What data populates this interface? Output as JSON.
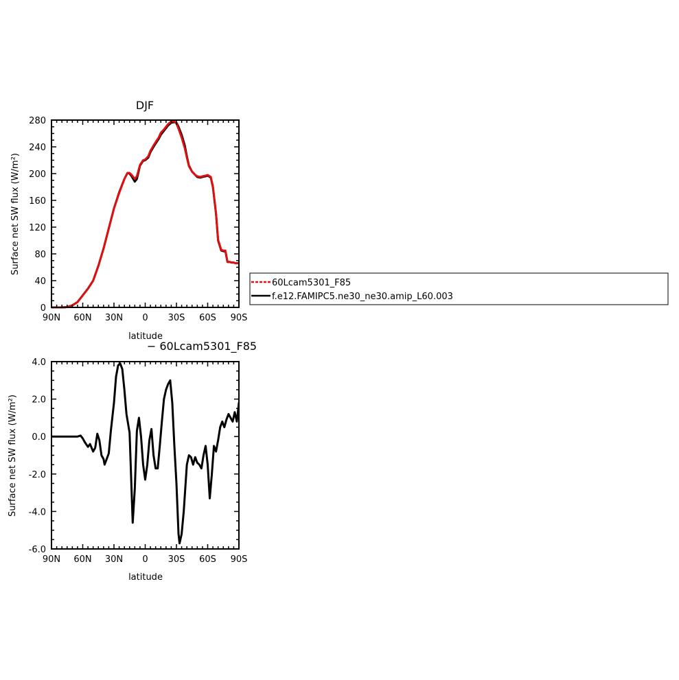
{
  "chart_data": [
    {
      "type": "line",
      "title": "DJF",
      "xlabel": "latitude",
      "ylabel": "Surface net SW flux (W/m²)",
      "xlim": [
        90,
        -90
      ],
      "ylim": [
        0,
        280
      ],
      "xticks": [
        90,
        60,
        30,
        0,
        -30,
        -60,
        -90
      ],
      "xtick_labels": [
        "90N",
        "60N",
        "30N",
        "0",
        "30S",
        "60S",
        "90S"
      ],
      "yticks": [
        0,
        40,
        80,
        120,
        160,
        200,
        240,
        280
      ],
      "ytick_labels": [
        "0",
        "40",
        "80",
        "120",
        "160",
        "200",
        "240",
        "280"
      ],
      "series": [
        {
          "name": "f.e12.FAMIPC5.ne30_ne30.amip_L60.003",
          "color": "#000000",
          "dash": "solid",
          "x": [
            90,
            85,
            80,
            75,
            70,
            65,
            60,
            55,
            50,
            45,
            40,
            35,
            30,
            25,
            20,
            17,
            15,
            13,
            10,
            8,
            5,
            2,
            0,
            -3,
            -5,
            -8,
            -10,
            -13,
            -15,
            -18,
            -20,
            -22,
            -25,
            -28,
            -30,
            -32,
            -35,
            -38,
            -40,
            -42,
            -45,
            -48,
            -50,
            -53,
            -55,
            -58,
            -60,
            -63,
            -65,
            -68,
            -70,
            -73,
            -75,
            -77,
            -79,
            -81,
            -83,
            -85,
            -87,
            -90
          ],
          "values": [
            0,
            0,
            0,
            0.5,
            3,
            8,
            18,
            28,
            40,
            62,
            88,
            118,
            148,
            172,
            192,
            201,
            200,
            196,
            188,
            192,
            212,
            219,
            220,
            224,
            232,
            240,
            245,
            252,
            258,
            264,
            268,
            272,
            276,
            277,
            276,
            270,
            258,
            242,
            226,
            212,
            203,
            198,
            195,
            194,
            195,
            196,
            197,
            194,
            180,
            140,
            100,
            85,
            84,
            84,
            68,
            68,
            67,
            67,
            66,
            66
          ]
        },
        {
          "name": "60Lcam5301_F85",
          "color": "#e01010",
          "dash": "dashed",
          "x": [
            90,
            85,
            80,
            75,
            70,
            65,
            60,
            55,
            50,
            45,
            40,
            35,
            30,
            25,
            20,
            17,
            15,
            13,
            10,
            8,
            5,
            2,
            0,
            -3,
            -5,
            -8,
            -10,
            -13,
            -15,
            -18,
            -20,
            -22,
            -25,
            -28,
            -30,
            -32,
            -35,
            -38,
            -40,
            -42,
            -45,
            -48,
            -50,
            -53,
            -55,
            -58,
            -60,
            -63,
            -65,
            -68,
            -70,
            -73,
            -75,
            -77,
            -79,
            -81,
            -83,
            -85,
            -87,
            -90
          ],
          "values": [
            0,
            0,
            0,
            0.5,
            3,
            8,
            18,
            28,
            40,
            62,
            88,
            118,
            148,
            171,
            192,
            201,
            201,
            198,
            192,
            196,
            213,
            220,
            221,
            226,
            234,
            242,
            247,
            254,
            261,
            266,
            270,
            274,
            278,
            278,
            275,
            267,
            254,
            238,
            224,
            211,
            203,
            198,
            196,
            195,
            196,
            197,
            198,
            195,
            181,
            141,
            101,
            86,
            85,
            85,
            68,
            68,
            67,
            67,
            66,
            66
          ]
        }
      ]
    },
    {
      "type": "line",
      "title": "− 60Lcam5301_F85",
      "xlabel": "latitude",
      "ylabel": "Surface net SW flux (W/m²)",
      "xlim": [
        90,
        -90
      ],
      "ylim": [
        -6,
        4
      ],
      "xticks": [
        90,
        60,
        30,
        0,
        -30,
        -60,
        -90
      ],
      "xtick_labels": [
        "90N",
        "60N",
        "30N",
        "0",
        "30S",
        "60S",
        "90S"
      ],
      "yticks": [
        -6,
        -4,
        -2,
        0,
        2,
        4
      ],
      "ytick_labels": [
        "-6.0",
        "-4.0",
        "-2.0",
        "0.0",
        "2.0",
        "4.0"
      ],
      "series": [
        {
          "color": "#000000",
          "dash": "solid",
          "x": [
            90,
            80,
            70,
            65,
            62,
            60,
            58,
            55,
            53,
            50,
            48,
            46,
            44,
            42,
            40,
            39,
            37,
            35,
            33,
            30,
            28,
            26,
            24,
            22,
            20,
            18,
            15,
            12,
            10,
            8,
            6,
            4,
            2,
            0,
            -2,
            -4,
            -6,
            -8,
            -10,
            -12,
            -14,
            -16,
            -18,
            -20,
            -22,
            -24,
            -26,
            -28,
            -30,
            -32,
            -33,
            -35,
            -37,
            -40,
            -42,
            -44,
            -46,
            -48,
            -50,
            -52,
            -54,
            -56,
            -58,
            -60,
            -62,
            -64,
            -66,
            -68,
            -70,
            -72,
            -74,
            -76,
            -78,
            -80,
            -82,
            -84,
            -86,
            -88,
            -90
          ],
          "values": [
            0,
            0,
            0,
            0,
            0.05,
            -0.1,
            -0.3,
            -0.55,
            -0.4,
            -0.8,
            -0.6,
            0.15,
            -0.2,
            -1.0,
            -1.2,
            -1.5,
            -1.2,
            -0.9,
            0.3,
            1.8,
            3.2,
            3.8,
            3.9,
            3.6,
            2.5,
            1.2,
            0.2,
            -4.6,
            -2.8,
            0.3,
            1.0,
            0.0,
            -1.5,
            -2.3,
            -1.5,
            -0.2,
            0.4,
            -1.0,
            -1.7,
            -1.7,
            -0.5,
            0.8,
            2.0,
            2.5,
            2.8,
            3.0,
            1.8,
            -0.5,
            -2.5,
            -5.2,
            -5.7,
            -5.2,
            -4.0,
            -1.5,
            -1.0,
            -1.1,
            -1.5,
            -1.1,
            -1.4,
            -1.5,
            -1.7,
            -1.0,
            -0.5,
            -1.5,
            -3.3,
            -2.0,
            -0.5,
            -0.8,
            -0.2,
            0.5,
            0.8,
            0.5,
            0.9,
            1.2,
            1.0,
            0.8,
            1.3,
            0.8,
            1.8
          ]
        }
      ]
    }
  ],
  "legend": {
    "items": [
      {
        "label": "60Lcam5301_F85",
        "color": "#e01010",
        "dash": "dashed"
      },
      {
        "label": "f.e12.FAMIPC5.ne30_ne30.amip_L60.003",
        "color": "#000000",
        "dash": "solid"
      }
    ]
  }
}
